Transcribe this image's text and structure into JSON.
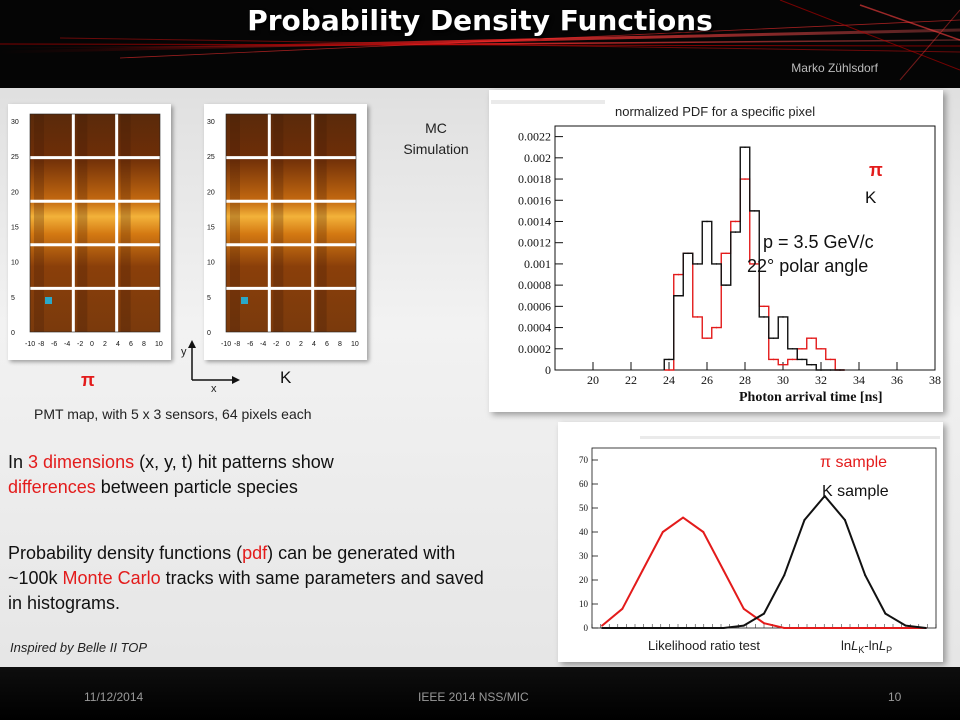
{
  "slide": {
    "title": "Probability Density Functions",
    "author": "Marko Zühlsdorf",
    "footer_date": "11/12/2014",
    "footer_conference": "IEEE 2014 NSS/MIC",
    "footer_page": "10"
  },
  "pmt": {
    "label_pi": "π",
    "label_k": "K",
    "axis_y_label": "y",
    "axis_x_label": "x",
    "caption": "PMT map, with 5 x 3 sensors, 64 pixels each",
    "mc_line1": "MC",
    "mc_line2": "Simulation",
    "x_ticks": [
      "-10",
      "-8",
      "-6",
      "-4",
      "-2",
      "0",
      "2",
      "4",
      "6",
      "8",
      "10"
    ],
    "y_ticks": [
      "30",
      "25",
      "20",
      "15",
      "10",
      "5",
      "0"
    ]
  },
  "text": {
    "p1_a": "In ",
    "p1_b": "3 dimensions",
    "p1_c": " (x, y, t) hit patterns show ",
    "p1_d": "differences",
    "p1_e": " between particle species",
    "p2_a": "Probability density functions (",
    "p2_b": "pdf",
    "p2_c": ") can be generated with ~100k ",
    "p2_d": "Monte Carlo",
    "p2_e": " tracks with same parameters and saved in histograms.",
    "note": "Inspired by Belle II TOP"
  },
  "colors": {
    "pi": "#e31b1b",
    "k": "#111111",
    "accent_red": "#e31b1b"
  },
  "chart_data": [
    {
      "type": "line",
      "title": "normalized PDF for a specific pixel",
      "xlabel": "Photon arrival time [ns]",
      "ylabel": "",
      "xlim": [
        18,
        38
      ],
      "ylim": [
        0,
        0.0023
      ],
      "x_ticks": [
        20,
        22,
        24,
        26,
        28,
        30,
        32,
        34,
        36,
        38
      ],
      "y_ticks": [
        "0",
        "0.0002",
        "0.0004",
        "0.0006",
        "0.0008",
        "0.001",
        "0.0012",
        "0.0014",
        "0.0016",
        "0.0018",
        "0.002",
        "0.0022"
      ],
      "legend": [
        "π",
        "K"
      ],
      "annotation_1": "p = 3.5 GeV/c",
      "annotation_2": "22° polar angle",
      "x": [
        24,
        24.5,
        25,
        25.5,
        26,
        26.5,
        27,
        27.5,
        28,
        28.5,
        29,
        29.5,
        30,
        30.5,
        31,
        31.5,
        32,
        32.5,
        33
      ],
      "series": [
        {
          "name": "π",
          "values": [
            0.0,
            0.0009,
            0.0011,
            0.0005,
            0.0003,
            0.0004,
            0.0011,
            0.0014,
            0.0018,
            0.001,
            0.0006,
            0.0001,
            5e-05,
            0.0001,
            0.0002,
            0.0003,
            0.0002,
            0.0001,
            0.0
          ]
        },
        {
          "name": "K",
          "values": [
            0.0001,
            0.0007,
            0.0011,
            0.001,
            0.0014,
            0.001,
            0.0008,
            0.0013,
            0.0021,
            0.0015,
            0.0005,
            0.0003,
            0.0005,
            0.0002,
            0.0001,
            5e-05,
            0.0,
            0.0,
            0.0
          ]
        }
      ]
    },
    {
      "type": "line",
      "title": "",
      "xlabel": "Likelihood ratio test",
      "xlabel_formula": "lnL_K-lnL_P",
      "formula_parts": [
        "ln",
        "L",
        "K",
        "-ln",
        "L",
        "P"
      ],
      "ylabel": "",
      "ylim": [
        0,
        75
      ],
      "y_ticks": [
        "0",
        "10",
        "20",
        "30",
        "40",
        "50",
        "60",
        "70"
      ],
      "legend": [
        "π sample",
        "K sample"
      ],
      "x": [
        -5,
        -4,
        -3,
        -2,
        -1,
        0,
        1,
        2,
        3,
        4,
        5,
        6,
        7,
        8,
        9,
        10,
        11
      ],
      "series": [
        {
          "name": "π sample",
          "values": [
            1,
            8,
            24,
            40,
            46,
            40,
            24,
            8,
            2,
            0,
            0,
            0,
            0,
            0,
            0,
            0,
            0
          ]
        },
        {
          "name": "K sample",
          "values": [
            0,
            0,
            0,
            0,
            0,
            0,
            0,
            1,
            6,
            22,
            45,
            55,
            45,
            22,
            6,
            1,
            0
          ]
        }
      ]
    }
  ]
}
